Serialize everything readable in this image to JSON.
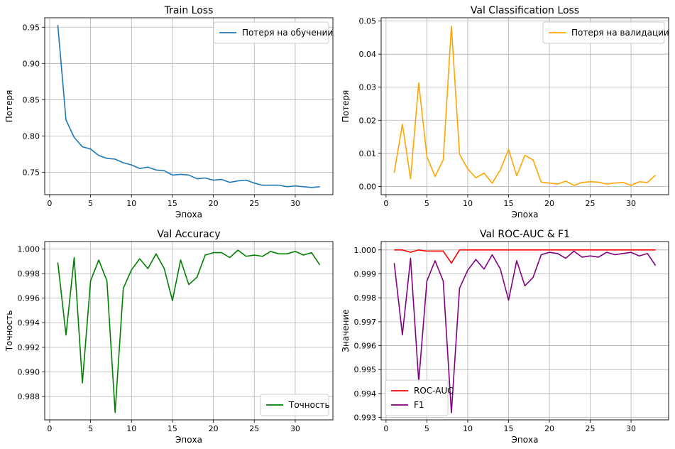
{
  "chart_data": [
    {
      "type": "line",
      "title": "Train Loss",
      "xlabel": "Эпоха",
      "ylabel": "Потеря",
      "xlim": [
        -0.6,
        34.6
      ],
      "ylim": [
        0.719,
        0.963
      ],
      "xticks": [
        0,
        5,
        10,
        15,
        20,
        25,
        30
      ],
      "xtick_labels": [
        "0",
        "5",
        "10",
        "15",
        "20",
        "25",
        "30"
      ],
      "yticks": [
        0.75,
        0.8,
        0.85,
        0.9,
        0.95
      ],
      "ytick_labels": [
        "0.75",
        "0.80",
        "0.85",
        "0.90",
        "0.95"
      ],
      "grid": true,
      "legend_position": "top-right",
      "x": [
        1,
        2,
        3,
        4,
        5,
        6,
        7,
        8,
        9,
        10,
        11,
        12,
        13,
        14,
        15,
        16,
        17,
        18,
        19,
        20,
        21,
        22,
        23,
        24,
        25,
        26,
        27,
        28,
        29,
        30,
        31,
        32,
        33
      ],
      "series": [
        {
          "name": "Потеря на обучении",
          "color": "#1f77b4",
          "values": [
            0.953,
            0.822,
            0.798,
            0.785,
            0.782,
            0.773,
            0.769,
            0.768,
            0.763,
            0.76,
            0.755,
            0.757,
            0.753,
            0.752,
            0.746,
            0.747,
            0.746,
            0.741,
            0.742,
            0.739,
            0.74,
            0.736,
            0.738,
            0.739,
            0.735,
            0.732,
            0.732,
            0.732,
            0.73,
            0.731,
            0.73,
            0.729,
            0.73
          ]
        }
      ]
    },
    {
      "type": "line",
      "title": "Val Classification Loss",
      "xlabel": "Эпоха",
      "ylabel": "Потеря",
      "xlim": [
        -0.6,
        34.6
      ],
      "ylim": [
        -0.0025,
        0.051
      ],
      "xticks": [
        0,
        5,
        10,
        15,
        20,
        25,
        30
      ],
      "xtick_labels": [
        "0",
        "5",
        "10",
        "15",
        "20",
        "25",
        "30"
      ],
      "yticks": [
        0.0,
        0.01,
        0.02,
        0.03,
        0.04,
        0.05
      ],
      "ytick_labels": [
        "0.00",
        "0.01",
        "0.02",
        "0.03",
        "0.04",
        "0.05"
      ],
      "grid": true,
      "legend_position": "top-right",
      "x": [
        1,
        2,
        3,
        4,
        5,
        6,
        7,
        8,
        9,
        10,
        11,
        12,
        13,
        14,
        15,
        16,
        17,
        18,
        19,
        20,
        21,
        22,
        23,
        24,
        25,
        26,
        27,
        28,
        29,
        30,
        31,
        32,
        33
      ],
      "series": [
        {
          "name": "Потеря на валидации",
          "color": "#ffa500",
          "values": [
            0.0041,
            0.0188,
            0.0023,
            0.0313,
            0.009,
            0.003,
            0.008,
            0.0484,
            0.0097,
            0.0053,
            0.0026,
            0.004,
            0.001,
            0.005,
            0.0112,
            0.0032,
            0.0094,
            0.008,
            0.0013,
            0.001,
            0.0007,
            0.0016,
            0.0003,
            0.0012,
            0.0014,
            0.0013,
            0.0007,
            0.001,
            0.0012,
            0.0003,
            0.0014,
            0.0012,
            0.0034
          ]
        }
      ]
    },
    {
      "type": "line",
      "title": "Val Accuracy",
      "xlabel": "Эпоха",
      "ylabel": "Точность",
      "xlim": [
        -0.6,
        34.6
      ],
      "ylim": [
        0.9861,
        1.0006
      ],
      "xticks": [
        0,
        5,
        10,
        15,
        20,
        25,
        30
      ],
      "xtick_labels": [
        "0",
        "5",
        "10",
        "15",
        "20",
        "25",
        "30"
      ],
      "yticks": [
        0.988,
        0.99,
        0.992,
        0.994,
        0.996,
        0.998,
        1.0
      ],
      "ytick_labels": [
        "0.988",
        "0.990",
        "0.992",
        "0.994",
        "0.996",
        "0.998",
        "1.000"
      ],
      "grid": true,
      "legend_position": "bottom-right",
      "x": [
        1,
        2,
        3,
        4,
        5,
        6,
        7,
        8,
        9,
        10,
        11,
        12,
        13,
        14,
        15,
        16,
        17,
        18,
        19,
        20,
        21,
        22,
        23,
        24,
        25,
        26,
        27,
        28,
        29,
        30,
        31,
        32,
        33
      ],
      "series": [
        {
          "name": "Точность",
          "color": "#008000",
          "values": [
            0.9989,
            0.993,
            0.9993,
            0.9891,
            0.9974,
            0.9991,
            0.9974,
            0.9867,
            0.9968,
            0.9983,
            0.9992,
            0.9984,
            0.9996,
            0.9984,
            0.9958,
            0.9991,
            0.9971,
            0.9977,
            0.9995,
            0.9997,
            0.9997,
            0.9993,
            0.9999,
            0.9994,
            0.9995,
            0.9994,
            0.9998,
            0.9996,
            0.9996,
            0.9998,
            0.9995,
            0.9997,
            0.9987
          ]
        }
      ]
    },
    {
      "type": "line",
      "title": "Val ROC-AUC & F1",
      "xlabel": "Эпоха",
      "ylabel": "Значение",
      "xlim": [
        -0.6,
        34.6
      ],
      "ylim": [
        0.9929,
        1.00035
      ],
      "xticks": [
        0,
        5,
        10,
        15,
        20,
        25,
        30
      ],
      "xtick_labels": [
        "0",
        "5",
        "10",
        "15",
        "20",
        "25",
        "30"
      ],
      "yticks": [
        0.993,
        0.994,
        0.995,
        0.996,
        0.997,
        0.998,
        0.999,
        1.0
      ],
      "ytick_labels": [
        "0.993",
        "0.994",
        "0.995",
        "0.996",
        "0.997",
        "0.998",
        "0.999",
        "1.000"
      ],
      "grid": true,
      "legend_position": "bottom-left",
      "x": [
        1,
        2,
        3,
        4,
        5,
        6,
        7,
        8,
        9,
        10,
        11,
        12,
        13,
        14,
        15,
        16,
        17,
        18,
        19,
        20,
        21,
        22,
        23,
        24,
        25,
        26,
        27,
        28,
        29,
        30,
        31,
        32,
        33
      ],
      "series": [
        {
          "name": "ROC-AUC",
          "color": "#ff0000",
          "values": [
            1.0,
            1.0,
            0.9999,
            1.0,
            0.99995,
            0.99995,
            0.99995,
            0.99945,
            1.0,
            1.0,
            1.0,
            1.0,
            1.0,
            1.0,
            1.0,
            1.0,
            1.0,
            1.0,
            1.0,
            1.0,
            1.0,
            1.0,
            1.0,
            1.0,
            1.0,
            1.0,
            1.0,
            1.0,
            1.0,
            1.0,
            1.0,
            1.0,
            1.0
          ]
        },
        {
          "name": "F1",
          "color": "#800080",
          "values": [
            0.99945,
            0.99645,
            0.99965,
            0.9945,
            0.9987,
            0.99955,
            0.9987,
            0.9932,
            0.9984,
            0.99915,
            0.9996,
            0.9992,
            0.9998,
            0.9992,
            0.9979,
            0.99955,
            0.9985,
            0.99885,
            0.9998,
            0.9999,
            0.99985,
            0.99965,
            0.99995,
            0.9997,
            0.99975,
            0.9997,
            0.9999,
            0.9998,
            0.99985,
            0.9999,
            0.99975,
            0.99985,
            0.99935
          ]
        }
      ]
    }
  ]
}
